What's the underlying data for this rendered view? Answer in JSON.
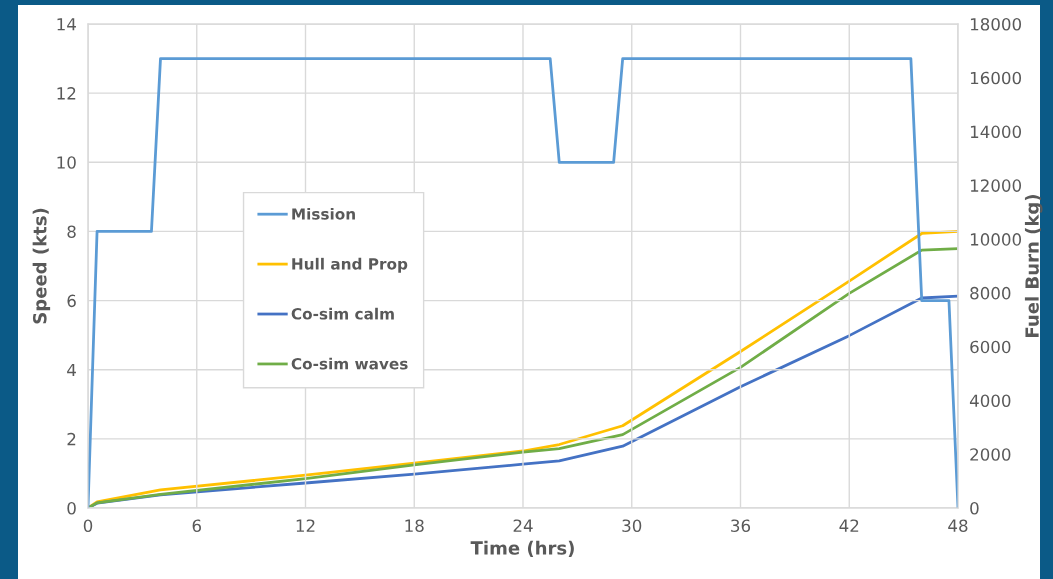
{
  "chart_data": {
    "type": "line",
    "xlabel": "Time (hrs)",
    "ylabel": "Speed (kts)",
    "y2label": "Fuel Burn (kg)",
    "xlim": [
      0,
      48
    ],
    "xticks": [
      0,
      6,
      12,
      18,
      24,
      30,
      36,
      42,
      48
    ],
    "ylim": [
      0,
      14
    ],
    "yticks": [
      0,
      2,
      4,
      6,
      8,
      10,
      12,
      14
    ],
    "y2lim": [
      0,
      18000
    ],
    "y2ticks": [
      0,
      2000,
      4000,
      6000,
      8000,
      10000,
      12000,
      14000,
      16000,
      18000
    ],
    "grid": true,
    "legend": "center left",
    "marker": "none",
    "line_style": "solid",
    "series": [
      {
        "name": "Mission",
        "color": "#5b9bd5",
        "x": [
          0,
          0.5,
          3.5,
          4,
          25.5,
          26,
          29,
          29.5,
          45.4,
          46,
          47.5,
          48
        ],
        "values": [
          0,
          8,
          8,
          13,
          13,
          10,
          10,
          13,
          13,
          6,
          6,
          0
        ]
      },
      {
        "name": "Hull and Prop",
        "color": "#ffc000",
        "axis": "y2",
        "x": [
          0,
          0.5,
          4,
          12,
          18,
          24,
          26,
          29.5,
          36,
          42,
          46,
          48
        ],
        "values": [
          0,
          230,
          670,
          1220,
          1670,
          2120,
          2360,
          3060,
          5820,
          8440,
          10210,
          10290
        ]
      },
      {
        "name": "Co-sim calm",
        "color": "#4472c4",
        "axis": "y2",
        "x": [
          0,
          0.5,
          4,
          12,
          18,
          24,
          26,
          29.5,
          36,
          42,
          46,
          48
        ],
        "values": [
          0,
          180,
          490,
          930,
          1260,
          1630,
          1750,
          2300,
          4510,
          6410,
          7810,
          7880
        ]
      },
      {
        "name": "Co-sim waves",
        "color": "#70ad47",
        "axis": "y2",
        "x": [
          0,
          0.5,
          4,
          12,
          18,
          24,
          26,
          29.5,
          36,
          42,
          46,
          48
        ],
        "values": [
          0,
          190,
          510,
          1090,
          1600,
          2080,
          2210,
          2730,
          5230,
          7980,
          9590,
          9650
        ]
      }
    ]
  }
}
